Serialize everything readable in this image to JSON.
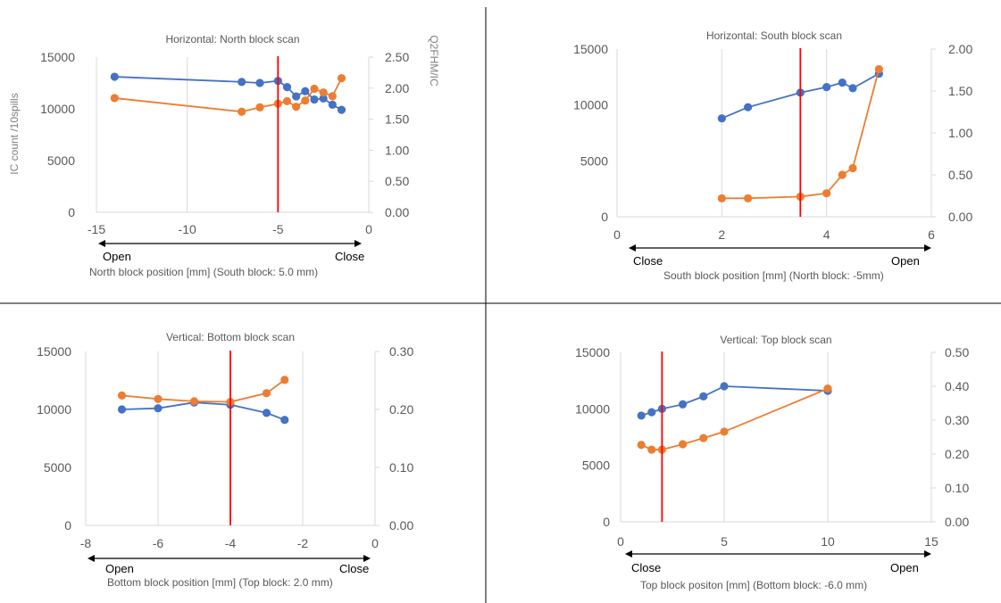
{
  "colors": {
    "ic_series": "#4472C4",
    "ratio_series": "#ED7D31",
    "marker_line": "#FF0000",
    "grid": "#D9D9D9",
    "text": "#595959"
  },
  "chart_data": [
    {
      "type": "line",
      "title": "Horizontal: North block scan",
      "xlabel": "North block position [mm] (South block: 5.0 mm)",
      "ylabel": "IC count /10spills",
      "y2label": "Q2FHM/IC",
      "xlim": [
        -15,
        0
      ],
      "xticks": [
        -15,
        -10,
        -5,
        0
      ],
      "ylim": [
        0,
        15000
      ],
      "yticks": [
        0,
        5000,
        10000,
        15000
      ],
      "y2lim": [
        0,
        2.5
      ],
      "y2ticks": [
        "0.00",
        "0.50",
        "1.00",
        "1.50",
        "2.00",
        "2.50"
      ],
      "direction_left": "Open",
      "direction_right": "Close",
      "marker_x": -5,
      "series": [
        {
          "axis": "y",
          "x": [
            -14,
            -7,
            -6,
            -5,
            -4.5,
            -4,
            -3.5,
            -3,
            -2.5,
            -2,
            -1.5
          ],
          "values": [
            13100,
            12600,
            12500,
            12700,
            12100,
            11200,
            11700,
            10900,
            11000,
            10400,
            9900
          ]
        },
        {
          "axis": "y2",
          "x": [
            -14,
            -7,
            -6,
            -5,
            -4.5,
            -4,
            -3.5,
            -3,
            -2.5,
            -2,
            -1.5
          ],
          "values": [
            1.84,
            1.62,
            1.69,
            1.75,
            1.79,
            1.7,
            1.8,
            1.99,
            1.93,
            1.87,
            2.16
          ]
        }
      ]
    },
    {
      "type": "line",
      "title": "Horizontal: South block scan",
      "xlabel": "South block position [mm] (North block: -5mm)",
      "ylabel": "",
      "y2label": "",
      "xlim": [
        0,
        6
      ],
      "xticks": [
        0,
        2,
        4,
        6
      ],
      "ylim": [
        0,
        15000
      ],
      "yticks": [
        0,
        5000,
        10000,
        15000
      ],
      "y2lim": [
        0,
        2
      ],
      "y2ticks": [
        "0.00",
        "0.50",
        "1.00",
        "1.50",
        "2.00"
      ],
      "direction_left": "Close",
      "direction_right": "Open",
      "marker_x": 3.5,
      "series": [
        {
          "axis": "y",
          "x": [
            2,
            2.5,
            3.5,
            4,
            4.3,
            4.5,
            5
          ],
          "values": [
            8800,
            9800,
            11100,
            11600,
            12000,
            11500,
            12800
          ]
        },
        {
          "axis": "y2",
          "x": [
            2,
            2.5,
            3.5,
            4,
            4.3,
            4.5,
            5
          ],
          "values": [
            0.22,
            0.22,
            0.24,
            0.28,
            0.5,
            0.58,
            1.76
          ]
        }
      ]
    },
    {
      "type": "line",
      "title": "Vertical: Bottom block scan",
      "xlabel": "Bottom block position [mm] (Top block: 2.0 mm)",
      "ylabel": "",
      "y2label": "",
      "xlim": [
        -8,
        0
      ],
      "xticks": [
        -8,
        -6,
        -4,
        -2,
        0
      ],
      "ylim": [
        0,
        15000
      ],
      "yticks": [
        0,
        5000,
        10000,
        15000
      ],
      "y2lim": [
        0,
        0.3
      ],
      "y2ticks": [
        "0.00",
        "0.10",
        "0.20",
        "0.30"
      ],
      "direction_left": "Open",
      "direction_right": "Close",
      "marker_x": -4,
      "series": [
        {
          "axis": "y",
          "x": [
            -7,
            -6,
            -5,
            -4,
            -3,
            -2.5
          ],
          "values": [
            10000,
            10100,
            10600,
            10400,
            9700,
            9100
          ]
        },
        {
          "axis": "y2",
          "x": [
            -7,
            -6,
            -5,
            -4,
            -3,
            -2.5
          ],
          "values": [
            0.224,
            0.218,
            0.214,
            0.213,
            0.228,
            0.251
          ]
        }
      ]
    },
    {
      "type": "line",
      "title": "Vertical: Top block scan",
      "xlabel": "Top block positon [mm] (Bottom block: -6.0 mm)",
      "ylabel": "",
      "y2label": "",
      "xlim": [
        0,
        15
      ],
      "xticks": [
        0,
        5,
        10,
        15
      ],
      "ylim": [
        0,
        15000
      ],
      "yticks": [
        0,
        5000,
        10000,
        15000
      ],
      "y2lim": [
        0,
        0.5
      ],
      "y2ticks": [
        "0.00",
        "0.10",
        "0.20",
        "0.30",
        "0.40",
        "0.50"
      ],
      "direction_left": "Close",
      "direction_right": "Open",
      "marker_x": 2,
      "series": [
        {
          "axis": "y",
          "x": [
            1,
            1.5,
            2,
            3,
            4,
            5,
            10
          ],
          "values": [
            9400,
            9700,
            10000,
            10400,
            11100,
            12000,
            11600
          ]
        },
        {
          "axis": "y2",
          "x": [
            1,
            1.5,
            2,
            3,
            4,
            5,
            10
          ],
          "values": [
            0.227,
            0.213,
            0.213,
            0.229,
            0.247,
            0.266,
            0.393
          ]
        }
      ]
    }
  ]
}
